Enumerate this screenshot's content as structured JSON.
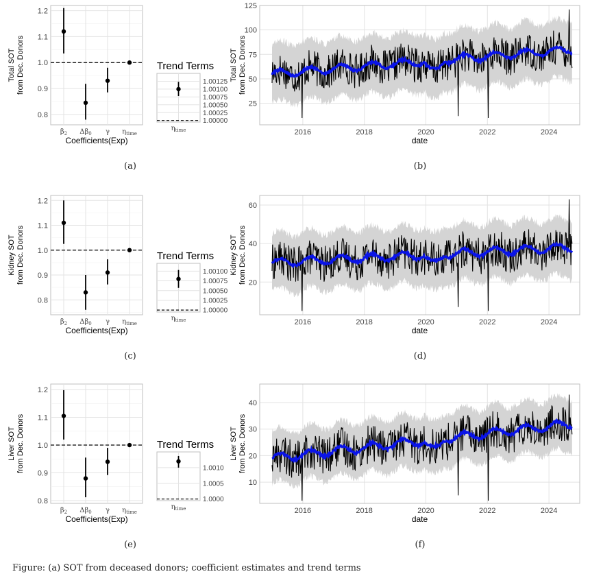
{
  "caption": "Figure: (a) SOT from deceased donors; coefficient estimates and trend terms",
  "rows": [
    {
      "coef": {
        "label": "(a)",
        "ylabel": [
          "Total SOT",
          "from Dec. Donors"
        ],
        "xlabel": "Coefficients(Exp)",
        "ylim": [
          0.76,
          1.22
        ],
        "yticks": [
          "0.8",
          "0.9",
          "1.0",
          "1.1",
          "1.2"
        ],
        "ytick_values": [
          0.8,
          0.9,
          1.0,
          1.1,
          1.2
        ],
        "categories": [
          "β2",
          "Δβ0",
          "γ",
          "ηtime"
        ],
        "estimate": [
          1.12,
          0.845,
          0.93,
          1.0
        ],
        "lower": [
          1.035,
          0.78,
          0.885,
          0.999
        ],
        "upper": [
          1.21,
          0.918,
          0.98,
          1.001
        ],
        "reference_line": 1.0
      },
      "trend": {
        "title": "Trend Terms",
        "category": "ηtime",
        "ylim": [
          0.99995,
          1.0015
        ],
        "yticks": [
          "1.00000",
          "1.00025",
          "1.00050",
          "1.00075",
          "1.00100",
          "1.00125"
        ],
        "ytick_values": [
          1.0,
          1.00025,
          1.0005,
          1.00075,
          1.001,
          1.00125
        ],
        "estimate": 1.001,
        "lower": 1.00078,
        "upper": 1.00123,
        "reference_line": 1.0
      },
      "series": {
        "label": "(b)",
        "ylabel": [
          "Total SOT",
          "from Dec. Donors"
        ],
        "xlabel": "date",
        "xlim": [
          2014.6,
          2025.0
        ],
        "xticks": [
          "2016",
          "2018",
          "2020",
          "2022",
          "2024"
        ],
        "xtick_values": [
          2016,
          2018,
          2020,
          2022,
          2024
        ],
        "ylim": [
          3,
          125
        ],
        "yticks": [
          "25",
          "50",
          "75",
          "100",
          "125"
        ],
        "ytick_values": [
          25,
          50,
          75,
          100,
          125
        ],
        "start": 55,
        "end": 80,
        "covid_dip": 12,
        "amp": 15,
        "band": 30,
        "min_spike": 10,
        "max_spike": 121
      }
    },
    {
      "coef": {
        "label": "(c)",
        "ylabel": [
          "Kidney SOT",
          "from Dec. Donors"
        ],
        "xlabel": "Coefficients(Exp)",
        "ylim": [
          0.74,
          1.22
        ],
        "yticks": [
          "0.8",
          "0.9",
          "1.0",
          "1.1",
          "1.2"
        ],
        "ytick_values": [
          0.8,
          0.9,
          1.0,
          1.1,
          1.2
        ],
        "categories": [
          "β2",
          "Δβ0",
          "γ",
          "ηtime"
        ],
        "estimate": [
          1.11,
          0.83,
          0.91,
          1.0
        ],
        "lower": [
          1.025,
          0.76,
          0.862,
          0.999
        ],
        "upper": [
          1.2,
          0.9,
          0.963,
          1.001
        ],
        "reference_line": 1.0
      },
      "trend": {
        "title": "Trend Terms",
        "category": "ηtime",
        "ylim": [
          0.99995,
          1.0012
        ],
        "yticks": [
          "1.00000",
          "1.00025",
          "1.00050",
          "1.00075",
          "1.00100"
        ],
        "ytick_values": [
          1.0,
          1.00025,
          1.0005,
          1.00075,
          1.001
        ],
        "estimate": 1.0008,
        "lower": 1.00057,
        "upper": 1.00103,
        "reference_line": 1.0
      },
      "series": {
        "label": "(d)",
        "ylabel": [
          "Kidney SOT",
          "from Dec. Donors"
        ],
        "xlabel": "date",
        "xlim": [
          2014.6,
          2025.0
        ],
        "xticks": [
          "2016",
          "2018",
          "2020",
          "2022",
          "2024"
        ],
        "xtick_values": [
          2016,
          2018,
          2020,
          2022,
          2024
        ],
        "ylim": [
          3,
          65
        ],
        "yticks": [
          "20",
          "40",
          "60"
        ],
        "ytick_values": [
          20,
          40,
          60
        ],
        "start": 30,
        "end": 38,
        "covid_dip": 5,
        "amp": 8,
        "band": 15,
        "min_spike": 5,
        "max_spike": 63
      }
    },
    {
      "coef": {
        "label": "(e)",
        "ylabel": [
          "Liver SOT",
          "from Dec. Donors"
        ],
        "xlabel": "Coefficients(Exp)",
        "ylim": [
          0.79,
          1.22
        ],
        "yticks": [
          "0.8",
          "0.9",
          "1.0",
          "1.1",
          "1.2"
        ],
        "ytick_values": [
          0.8,
          0.9,
          1.0,
          1.1,
          1.2
        ],
        "categories": [
          "β2",
          "Δβ0",
          "γ",
          "ηtime"
        ],
        "estimate": [
          1.105,
          0.88,
          0.94,
          1.0
        ],
        "lower": [
          1.02,
          0.812,
          0.892,
          0.999
        ],
        "upper": [
          1.198,
          0.955,
          0.99,
          1.001
        ],
        "reference_line": 1.0
      },
      "trend": {
        "title": "Trend Terms",
        "category": "ηtime",
        "ylim": [
          0.99995,
          1.0015
        ],
        "yticks": [
          "1.0000",
          "1.0005",
          "1.0010"
        ],
        "ytick_values": [
          1.0,
          1.0005,
          1.001
        ],
        "estimate": 1.0012,
        "lower": 1.001,
        "upper": 1.00137,
        "reference_line": 1.0
      },
      "series": {
        "label": "(f)",
        "ylabel": [
          "Liver SOT",
          "from Dec. Donors"
        ],
        "xlabel": "date",
        "xlim": [
          2014.6,
          2025.0
        ],
        "xticks": [
          "2016",
          "2018",
          "2020",
          "2022",
          "2024"
        ],
        "xtick_values": [
          2016,
          2018,
          2020,
          2022,
          2024
        ],
        "ylim": [
          2,
          47
        ],
        "yticks": [
          "10",
          "20",
          "30",
          "40"
        ],
        "ytick_values": [
          10,
          20,
          30,
          40
        ],
        "start": 19,
        "end": 32,
        "covid_dip": 4,
        "amp": 6,
        "band": 10,
        "min_spike": 3,
        "max_spike": 43
      }
    }
  ],
  "colors": {
    "panel_grid": "#e3e3e3",
    "panel_border": "#bfbfbf",
    "observed": "#000000",
    "fitted": "#0a14e8",
    "band": "#d4d4d4"
  },
  "chart_data": [
    {
      "type": "scatter",
      "panel": "(a)",
      "categories": [
        "β2",
        "Δβ0",
        "γ",
        "ηtime"
      ],
      "values": [
        1.12,
        0.845,
        0.93,
        1.0
      ],
      "ylim": [
        0.76,
        1.22
      ],
      "xlabel": "Coefficients(Exp)",
      "ylabel": "Total SOT from Dec. Donors"
    },
    {
      "type": "scatter",
      "panel": "(a) trend",
      "title": "Trend Terms",
      "categories": [
        "ηtime"
      ],
      "values": [
        1.001
      ]
    },
    {
      "type": "line",
      "panel": "(b)",
      "xlabel": "date",
      "ylabel": "Total SOT from Dec. Donors",
      "ylim": [
        3,
        125
      ]
    },
    {
      "type": "scatter",
      "panel": "(c)",
      "categories": [
        "β2",
        "Δβ0",
        "γ",
        "ηtime"
      ],
      "values": [
        1.11,
        0.83,
        0.91,
        1.0
      ],
      "ylim": [
        0.74,
        1.22
      ],
      "xlabel": "Coefficients(Exp)",
      "ylabel": "Kidney SOT from Dec. Donors"
    },
    {
      "type": "scatter",
      "panel": "(c) trend",
      "title": "Trend Terms",
      "categories": [
        "ηtime"
      ],
      "values": [
        1.0008
      ]
    },
    {
      "type": "line",
      "panel": "(d)",
      "xlabel": "date",
      "ylabel": "Kidney SOT from Dec. Donors",
      "ylim": [
        3,
        65
      ]
    },
    {
      "type": "scatter",
      "panel": "(e)",
      "categories": [
        "β2",
        "Δβ0",
        "γ",
        "ηtime"
      ],
      "values": [
        1.105,
        0.88,
        0.94,
        1.0
      ],
      "ylim": [
        0.79,
        1.22
      ],
      "xlabel": "Coefficients(Exp)",
      "ylabel": "Liver SOT from Dec. Donors"
    },
    {
      "type": "scatter",
      "panel": "(e) trend",
      "title": "Trend Terms",
      "categories": [
        "ηtime"
      ],
      "values": [
        1.0012
      ]
    },
    {
      "type": "line",
      "panel": "(f)",
      "xlabel": "date",
      "ylabel": "Liver SOT from Dec. Donors",
      "ylim": [
        2,
        47
      ]
    }
  ]
}
